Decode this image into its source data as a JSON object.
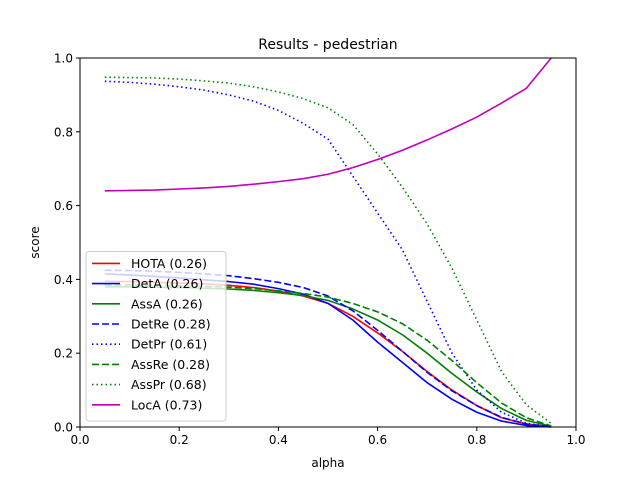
{
  "chart_data": {
    "type": "line",
    "title": "Results - pedestrian",
    "xlabel": "alpha",
    "ylabel": "score",
    "xlim": [
      0.0,
      1.0
    ],
    "ylim": [
      0.0,
      1.0
    ],
    "xticks": [
      "0.0",
      "0.2",
      "0.4",
      "0.6",
      "0.8",
      "1.0"
    ],
    "yticks": [
      "0.0",
      "0.2",
      "0.4",
      "0.6",
      "0.8",
      "1.0"
    ],
    "grid": false,
    "legend_position": "lower-left",
    "x": [
      0.05,
      0.1,
      0.15,
      0.2,
      0.25,
      0.3,
      0.35,
      0.4,
      0.45,
      0.5,
      0.55,
      0.6,
      0.65,
      0.7,
      0.75,
      0.8,
      0.85,
      0.9,
      0.95
    ],
    "series": [
      {
        "name": "HOTA (0.26)",
        "color": "#ff0000",
        "style": "solid",
        "values": [
          0.395,
          0.394,
          0.392,
          0.39,
          0.388,
          0.384,
          0.378,
          0.368,
          0.355,
          0.335,
          0.3,
          0.255,
          0.205,
          0.15,
          0.1,
          0.058,
          0.025,
          0.008,
          0.001
        ]
      },
      {
        "name": "DetA (0.26)",
        "color": "#0000ff",
        "style": "solid",
        "values": [
          0.415,
          0.412,
          0.408,
          0.404,
          0.399,
          0.394,
          0.387,
          0.375,
          0.36,
          0.335,
          0.29,
          0.23,
          0.175,
          0.12,
          0.075,
          0.04,
          0.016,
          0.004,
          0.0
        ]
      },
      {
        "name": "AssA (0.26)",
        "color": "#008000",
        "style": "solid",
        "values": [
          0.38,
          0.38,
          0.379,
          0.378,
          0.376,
          0.374,
          0.37,
          0.364,
          0.356,
          0.343,
          0.32,
          0.29,
          0.25,
          0.2,
          0.145,
          0.095,
          0.05,
          0.018,
          0.002
        ]
      },
      {
        "name": "DetRe (0.28)",
        "color": "#0000ff",
        "style": "dashed",
        "values": [
          0.425,
          0.424,
          0.422,
          0.419,
          0.415,
          0.41,
          0.402,
          0.392,
          0.378,
          0.355,
          0.315,
          0.262,
          0.205,
          0.148,
          0.098,
          0.058,
          0.026,
          0.008,
          0.001
        ]
      },
      {
        "name": "DetPr (0.61)",
        "color": "#0000ff",
        "style": "dotted",
        "values": [
          0.937,
          0.934,
          0.929,
          0.922,
          0.913,
          0.9,
          0.883,
          0.858,
          0.823,
          0.78,
          0.68,
          0.58,
          0.48,
          0.34,
          0.2,
          0.1,
          0.04,
          0.01,
          0.001
        ]
      },
      {
        "name": "AssRe (0.28)",
        "color": "#008000",
        "style": "dashed",
        "values": [
          0.385,
          0.385,
          0.384,
          0.383,
          0.381,
          0.379,
          0.375,
          0.369,
          0.362,
          0.352,
          0.335,
          0.312,
          0.28,
          0.235,
          0.18,
          0.12,
          0.065,
          0.025,
          0.003
        ]
      },
      {
        "name": "AssPr (0.68)",
        "color": "#008000",
        "style": "dotted",
        "values": [
          0.948,
          0.947,
          0.946,
          0.943,
          0.938,
          0.932,
          0.922,
          0.908,
          0.89,
          0.865,
          0.82,
          0.74,
          0.65,
          0.55,
          0.43,
          0.29,
          0.15,
          0.06,
          0.01
        ]
      },
      {
        "name": "LocA (0.73)",
        "color": "#bf00bf",
        "style": "solid",
        "values": [
          0.64,
          0.641,
          0.642,
          0.645,
          0.648,
          0.652,
          0.658,
          0.665,
          0.673,
          0.685,
          0.703,
          0.725,
          0.75,
          0.778,
          0.808,
          0.84,
          0.878,
          0.918,
          1.0
        ]
      }
    ]
  }
}
